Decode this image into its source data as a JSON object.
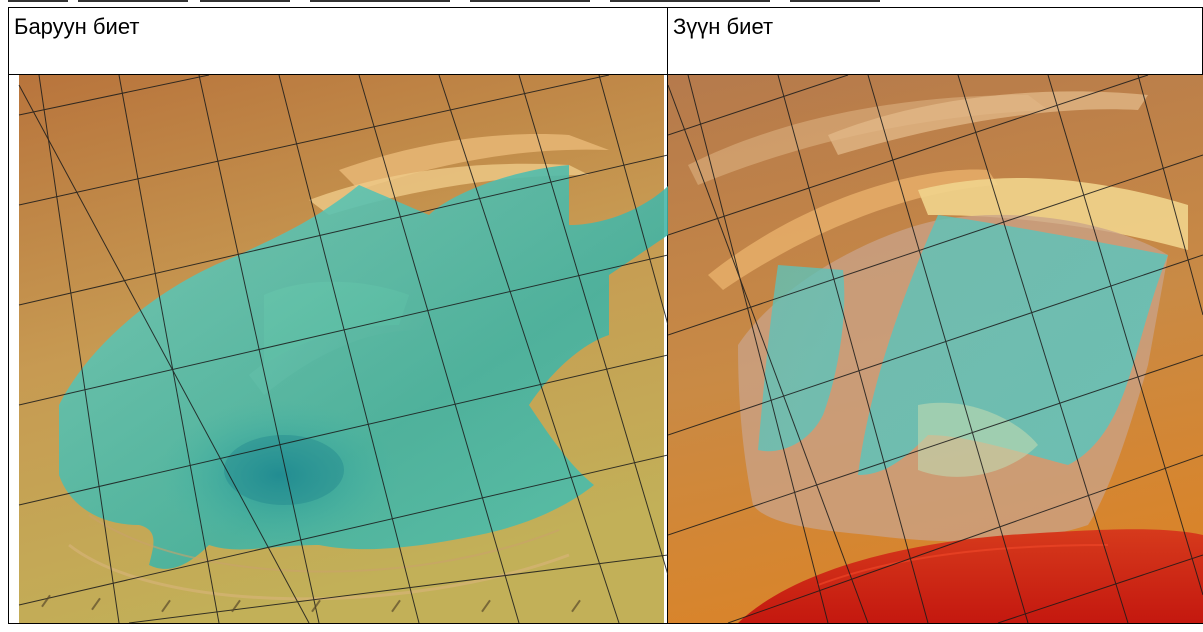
{
  "table": {
    "headers": [
      "Баруун биет",
      "Зүүн биет"
    ]
  },
  "colors": {
    "terrain_orange": "#c98a45",
    "terrain_tan": "#c7a27a",
    "terrain_yellow": "#c7b25a",
    "water_cyan": "#5ed0c4",
    "water_teal": "#2aa9a4",
    "red_zone": "#d42418",
    "grid_line": "#1a1a1a"
  },
  "images": {
    "left": {
      "icon": "west-pit-3d-model"
    },
    "right": {
      "icon": "east-pit-3d-model"
    }
  }
}
